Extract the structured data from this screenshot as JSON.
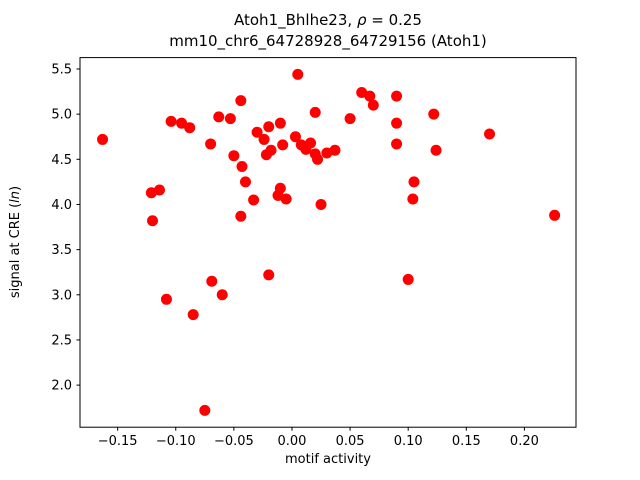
{
  "figure": {
    "title_prefix": "Atoh1_Bhlhe23, ",
    "title_rho": "ρ",
    "title_suffix": " = 0.25",
    "title_line2": "mm10_chr6_64728928_64729156 (Atoh1)",
    "xlabel": "motif activity",
    "ylabel_prefix": "signal at CRE (",
    "ylabel_italic": "ln",
    "ylabel_suffix": ")"
  },
  "chart_data": {
    "type": "scatter",
    "title": "Atoh1_Bhlhe23, ρ = 0.25\nmm10_chr6_64728928_64729156 (Atoh1)",
    "xlabel": "motif activity",
    "ylabel": "signal at CRE (ln)",
    "marker_color": "#ff0000",
    "marker_radius": 5.5,
    "grid": false,
    "xlim": [
      -0.1824,
      0.2444
    ],
    "ylim": [
      1.534,
      5.626
    ],
    "xtick_values": [
      -0.15,
      -0.1,
      -0.05,
      0.0,
      0.05,
      0.1,
      0.15,
      0.2
    ],
    "xtick_labels": [
      "−0.15",
      "−0.10",
      "−0.05",
      "0.00",
      "0.05",
      "0.10",
      "0.15",
      "0.20"
    ],
    "ytick_values": [
      2.0,
      2.5,
      3.0,
      3.5,
      4.0,
      4.5,
      5.0,
      5.5
    ],
    "ytick_labels": [
      "2.0",
      "2.5",
      "3.0",
      "3.5",
      "4.0",
      "4.5",
      "5.0",
      "5.5"
    ],
    "points": [
      [
        -0.163,
        4.72
      ],
      [
        -0.121,
        4.13
      ],
      [
        -0.114,
        4.16
      ],
      [
        -0.12,
        3.82
      ],
      [
        -0.108,
        2.95
      ],
      [
        -0.104,
        4.92
      ],
      [
        -0.095,
        4.9
      ],
      [
        -0.088,
        4.85
      ],
      [
        -0.085,
        2.78
      ],
      [
        -0.075,
        1.72
      ],
      [
        -0.07,
        4.67
      ],
      [
        -0.069,
        3.15
      ],
      [
        -0.063,
        4.97
      ],
      [
        -0.053,
        4.95
      ],
      [
        -0.06,
        3.0
      ],
      [
        -0.05,
        4.54
      ],
      [
        -0.044,
        5.15
      ],
      [
        -0.043,
        4.42
      ],
      [
        -0.04,
        4.25
      ],
      [
        -0.044,
        3.87
      ],
      [
        -0.033,
        4.05
      ],
      [
        -0.03,
        4.8
      ],
      [
        -0.024,
        4.72
      ],
      [
        -0.02,
        4.86
      ],
      [
        -0.018,
        4.6
      ],
      [
        -0.022,
        4.55
      ],
      [
        -0.02,
        3.22
      ],
      [
        -0.01,
        4.9
      ],
      [
        -0.008,
        4.66
      ],
      [
        -0.01,
        4.18
      ],
      [
        -0.012,
        4.1
      ],
      [
        -0.005,
        4.06
      ],
      [
        0.005,
        5.44
      ],
      [
        0.003,
        4.75
      ],
      [
        0.008,
        4.66
      ],
      [
        0.012,
        4.61
      ],
      [
        0.016,
        4.68
      ],
      [
        0.02,
        5.02
      ],
      [
        0.02,
        4.56
      ],
      [
        0.022,
        4.5
      ],
      [
        0.03,
        4.57
      ],
      [
        0.037,
        4.6
      ],
      [
        0.025,
        4.0
      ],
      [
        0.05,
        4.95
      ],
      [
        0.06,
        5.24
      ],
      [
        0.067,
        5.2
      ],
      [
        0.07,
        5.1
      ],
      [
        0.09,
        5.2
      ],
      [
        0.09,
        4.9
      ],
      [
        0.09,
        4.67
      ],
      [
        0.1,
        3.17
      ],
      [
        0.105,
        4.25
      ],
      [
        0.104,
        4.06
      ],
      [
        0.122,
        5.0
      ],
      [
        0.124,
        4.6
      ],
      [
        0.17,
        4.78
      ],
      [
        0.226,
        3.88
      ]
    ]
  }
}
